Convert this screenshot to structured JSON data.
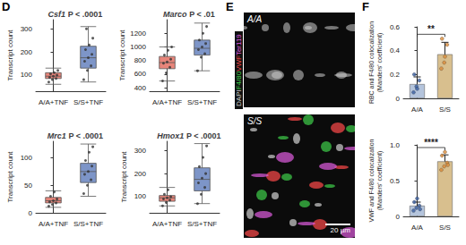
{
  "panels": [
    "D",
    "E",
    "F"
  ],
  "chart_data": [
    {
      "type": "boxplot",
      "title": "Csf1 P < .0001",
      "y_label": "Transcript count",
      "categories": [
        "A/A+TNF",
        "S/S+TNF"
      ],
      "colors": [
        "#e8857a",
        "#7d95c8"
      ],
      "boxes": [
        [
          60,
          85,
          95,
          110,
          130
        ],
        [
          70,
          130,
          175,
          225,
          310
        ]
      ],
      "points": [
        [
          70,
          80,
          85,
          90,
          95,
          100,
          105,
          110,
          120
        ],
        [
          80,
          120,
          140,
          160,
          175,
          190,
          210,
          230,
          260,
          300
        ]
      ],
      "ylim": [
        30,
        340
      ],
      "yticks": [
        100,
        200,
        300
      ],
      "grid": false
    },
    {
      "type": "boxplot",
      "title": "Marco P < .01",
      "y_label": "Transcript count",
      "categories": [
        "A/A+TNF",
        "S/S+TNF"
      ],
      "colors": [
        "#e8857a",
        "#7d95c8"
      ],
      "boxes": [
        [
          500,
          680,
          770,
          860,
          1000
        ],
        [
          650,
          880,
          980,
          1100,
          1350
        ]
      ],
      "points": [
        [
          500,
          620,
          700,
          760,
          780,
          820,
          880,
          950,
          1000
        ],
        [
          650,
          850,
          900,
          960,
          1000,
          1050,
          1100,
          1200,
          1300
        ]
      ],
      "ylim": [
        350,
        1400
      ],
      "yticks": [
        400,
        600,
        800,
        1000,
        1200
      ],
      "grid": false
    },
    {
      "type": "boxplot",
      "title": "Mrc1 P < .0001",
      "y_label": "Transcript count",
      "categories": [
        "A/A+TNF",
        "S/S+TNF"
      ],
      "colors": [
        "#e8857a",
        "#7d95c8"
      ],
      "boxes": [
        [
          10,
          18,
          22,
          28,
          40
        ],
        [
          30,
          55,
          75,
          90,
          125
        ]
      ],
      "points": [
        [
          12,
          15,
          18,
          20,
          22,
          25,
          30,
          38
        ],
        [
          35,
          50,
          60,
          70,
          75,
          85,
          95,
          110,
          120
        ]
      ],
      "ylim": [
        0,
        130
      ],
      "yticks": [
        0,
        50,
        100
      ],
      "grid": false
    },
    {
      "type": "boxplot",
      "title": "Hmox1 P < .0001",
      "y_label": "Transcript count",
      "categories": [
        "A/A+TNF",
        "S/S+TNF"
      ],
      "colors": [
        "#e8857a",
        "#7d95c8"
      ],
      "boxes": [
        [
          60,
          80,
          95,
          105,
          140
        ],
        [
          70,
          125,
          175,
          225,
          330
        ]
      ],
      "points": [
        [
          60,
          75,
          85,
          90,
          95,
          100,
          110,
          130
        ],
        [
          70,
          110,
          140,
          160,
          180,
          200,
          230,
          270,
          320
        ]
      ],
      "ylim": [
        30,
        340
      ],
      "yticks": [
        100,
        200,
        300
      ],
      "grid": false
    },
    {
      "type": "bar",
      "y_label": "RBC and F4/80 colocalization\n(Manders' coefficient)",
      "categories": [
        "A/A",
        "S/S"
      ],
      "colors": [
        "#b4c4dc",
        "#d8bf8e"
      ],
      "values": [
        0.12,
        0.37
      ],
      "errors": [
        0.06,
        0.1
      ],
      "points": [
        [
          0.05,
          0.1,
          0.15,
          0.2,
          0.08
        ],
        [
          0.25,
          0.3,
          0.45,
          0.5,
          0.35
        ]
      ],
      "significance": "**",
      "ylim": [
        0,
        0.6
      ],
      "yticks": [
        0,
        0.2,
        0.4,
        0.6
      ],
      "grid": false
    },
    {
      "type": "bar",
      "y_label": "VWF and F4/80 colocalization\n(Manders' coefficient)",
      "categories": [
        "A/A",
        "S/S"
      ],
      "colors": [
        "#b4c4dc",
        "#d8bf8e"
      ],
      "values": [
        0.15,
        0.77
      ],
      "errors": [
        0.05,
        0.09
      ],
      "points": [
        [
          0.08,
          0.12,
          0.15,
          0.2,
          0.25,
          0.1
        ],
        [
          0.65,
          0.7,
          0.75,
          0.85,
          0.9,
          0.72
        ]
      ],
      "significance": "****",
      "ylim": [
        0,
        1
      ],
      "yticks": [
        0,
        0.5,
        {
          "value": 1,
          "label": "1.0"
        }
      ],
      "grid": false
    }
  ],
  "image_panel": {
    "images": [
      "A/A",
      "S/S"
    ],
    "stains": [
      {
        "name": "DAPI",
        "color": "#d0d0d0"
      },
      {
        "name": "F4/80",
        "color": "#3ecf4a"
      },
      {
        "name": "VWF",
        "color": "#ff4a4a"
      },
      {
        "name": "Ter119",
        "color": "#e05ce0"
      }
    ],
    "scale_bar": "20 µm"
  }
}
